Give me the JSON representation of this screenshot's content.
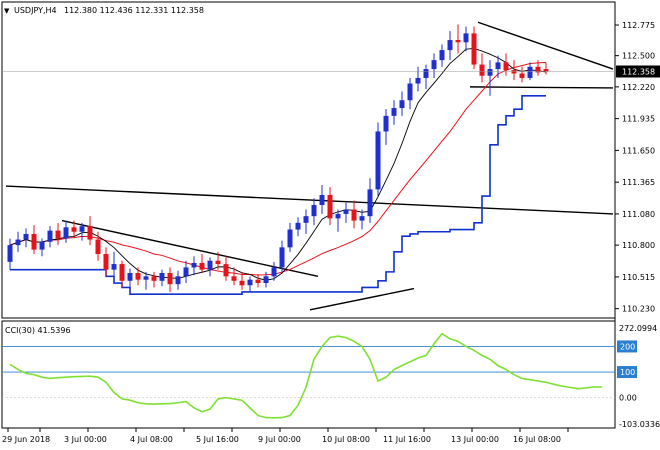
{
  "window": {
    "symbol_label": "USDJPY,H4",
    "ohlc_text": "112.380 112.436 112.331 112.358",
    "arrow_glyph": "▼"
  },
  "price_axis": {
    "ticks": [
      "112.775",
      "112.500",
      "112.220",
      "111.935",
      "111.650",
      "111.365",
      "111.080",
      "110.800",
      "110.515",
      "110.230"
    ],
    "current_price_label": "112.358"
  },
  "cci_panel": {
    "title": "CCI(30) 41.5396",
    "ticks": [
      "272.0994",
      "200",
      "100",
      "0.00",
      "-103.0336"
    ]
  },
  "time_axis": {
    "labels": [
      "29 Jun 2018",
      "3 Jul 00:00",
      "4 Jul 08:00",
      "5 Jul 16:00",
      "9 Jul 00:00",
      "10 Jul 08:00",
      "11 Jul 16:00",
      "13 Jul 00:00",
      "16 Jul 08:00"
    ]
  },
  "colors": {
    "bull": "#1f2fd0",
    "bear": "#e8121b",
    "fast_ma": "#000000",
    "slow_ma": "#e8121b",
    "lower_band": "#1030d0",
    "cci_line": "#7fe032",
    "cci_level": "#2a7fd0",
    "grid_border": "#000000"
  },
  "chart_data": {
    "type": "candlestick",
    "symbol": "USDJPY",
    "timeframe": "H4",
    "y_range": [
      110.2,
      112.82
    ],
    "candles": [
      [
        110.65,
        110.86,
        110.58,
        110.8
      ],
      [
        110.8,
        110.92,
        110.74,
        110.85
      ],
      [
        110.85,
        110.95,
        110.78,
        110.9
      ],
      [
        110.9,
        110.98,
        110.72,
        110.76
      ],
      [
        110.76,
        110.86,
        110.7,
        110.83
      ],
      [
        110.83,
        110.97,
        110.78,
        110.93
      ],
      [
        110.93,
        111.0,
        110.8,
        110.86
      ],
      [
        110.86,
        111.02,
        110.82,
        110.96
      ],
      [
        110.96,
        111.02,
        110.88,
        110.92
      ],
      [
        110.92,
        111.0,
        110.84,
        110.97
      ],
      [
        110.97,
        111.06,
        110.8,
        110.85
      ],
      [
        110.85,
        110.92,
        110.66,
        110.72
      ],
      [
        110.72,
        110.78,
        110.52,
        110.58
      ],
      [
        110.58,
        110.74,
        110.46,
        110.63
      ],
      [
        110.63,
        110.66,
        110.42,
        110.48
      ],
      [
        110.48,
        110.59,
        110.36,
        110.55
      ],
      [
        110.55,
        110.6,
        110.44,
        110.49
      ],
      [
        110.49,
        110.56,
        110.4,
        110.52
      ],
      [
        110.52,
        110.56,
        110.42,
        110.48
      ],
      [
        110.48,
        110.58,
        110.43,
        110.55
      ],
      [
        110.55,
        110.6,
        110.38,
        110.45
      ],
      [
        110.45,
        110.57,
        110.4,
        110.52
      ],
      [
        110.52,
        110.66,
        110.46,
        110.6
      ],
      [
        110.6,
        110.7,
        110.53,
        110.64
      ],
      [
        110.64,
        110.72,
        110.55,
        110.58
      ],
      [
        110.58,
        110.69,
        110.52,
        110.66
      ],
      [
        110.66,
        110.74,
        110.58,
        110.63
      ],
      [
        110.63,
        110.7,
        110.48,
        110.52
      ],
      [
        110.52,
        110.6,
        110.44,
        110.48
      ],
      [
        110.48,
        110.56,
        110.4,
        110.44
      ],
      [
        110.44,
        110.52,
        110.38,
        110.49
      ],
      [
        110.49,
        110.54,
        110.42,
        110.46
      ],
      [
        110.46,
        110.56,
        110.42,
        110.52
      ],
      [
        110.52,
        110.65,
        110.48,
        110.6
      ],
      [
        110.6,
        110.84,
        110.56,
        110.78
      ],
      [
        110.78,
        111.0,
        110.74,
        110.94
      ],
      [
        110.94,
        111.05,
        110.88,
        111.0
      ],
      [
        111.0,
        111.12,
        110.9,
        111.06
      ],
      [
        111.06,
        111.22,
        110.98,
        111.16
      ],
      [
        111.16,
        111.34,
        111.08,
        111.25
      ],
      [
        111.25,
        111.32,
        110.98,
        111.04
      ],
      [
        111.04,
        111.12,
        110.92,
        111.08
      ],
      [
        111.08,
        111.18,
        111.0,
        111.12
      ],
      [
        111.12,
        111.2,
        110.95,
        111.02
      ],
      [
        111.02,
        111.12,
        110.94,
        111.06
      ],
      [
        111.06,
        111.4,
        111.0,
        111.3
      ],
      [
        111.3,
        111.9,
        111.24,
        111.82
      ],
      [
        111.82,
        112.02,
        111.7,
        111.96
      ],
      [
        111.96,
        112.1,
        111.88,
        112.03
      ],
      [
        112.03,
        112.18,
        111.96,
        112.1
      ],
      [
        112.1,
        112.3,
        112.02,
        112.25
      ],
      [
        112.25,
        112.4,
        112.18,
        112.3
      ],
      [
        112.3,
        112.42,
        112.2,
        112.38
      ],
      [
        112.38,
        112.52,
        112.3,
        112.46
      ],
      [
        112.46,
        112.6,
        112.4,
        112.55
      ],
      [
        112.55,
        112.72,
        112.46,
        112.64
      ],
      [
        112.64,
        112.78,
        112.52,
        112.62
      ],
      [
        112.62,
        112.76,
        112.54,
        112.7
      ],
      [
        112.7,
        112.76,
        112.38,
        112.42
      ],
      [
        112.42,
        112.52,
        112.26,
        112.32
      ],
      [
        112.32,
        112.46,
        112.14,
        112.38
      ],
      [
        112.38,
        112.5,
        112.3,
        112.44
      ],
      [
        112.44,
        112.52,
        112.32,
        112.37
      ],
      [
        112.37,
        112.46,
        112.28,
        112.34
      ],
      [
        112.34,
        112.4,
        112.26,
        112.3
      ],
      [
        112.3,
        112.44,
        112.28,
        112.4
      ],
      [
        112.4,
        112.46,
        112.32,
        112.35
      ],
      [
        112.38,
        112.436,
        112.331,
        112.358
      ]
    ],
    "trendlines_price": [
      {
        "name": "upper-triangle-line",
        "from": [
          59,
          112.8
        ],
        "to": [
          77,
          112.38
        ]
      },
      {
        "name": "lower-triangle-line",
        "from": [
          58,
          112.22
        ],
        "to": [
          79,
          112.21
        ]
      },
      {
        "name": "long-horizontal-line",
        "from": [
          0,
          111.33
        ],
        "to": [
          79,
          111.08
        ]
      },
      {
        "name": "early-downtrend-line",
        "from": [
          7,
          111.02
        ],
        "to": [
          39,
          110.52
        ]
      },
      {
        "name": "bottom-uptrend-line",
        "from": [
          38,
          110.22
        ],
        "to": [
          51,
          110.41
        ]
      }
    ],
    "cci": {
      "y_range": [
        -103.0336,
        272.0994
      ],
      "levels": [
        200,
        100
      ],
      "values": [
        130,
        110,
        95,
        90,
        80,
        75,
        78,
        80,
        82,
        83,
        84,
        80,
        60,
        20,
        -5,
        -10,
        -20,
        -24,
        -25,
        -24,
        -23,
        -20,
        -15,
        -40,
        -55,
        -45,
        -5,
        0,
        -5,
        -10,
        -40,
        -70,
        -78,
        -79,
        -78,
        -70,
        -30,
        40,
        150,
        200,
        235,
        240,
        235,
        220,
        200,
        150,
        65,
        80,
        110,
        125,
        140,
        155,
        165,
        210,
        250,
        230,
        220,
        200,
        185,
        165,
        150,
        125,
        110,
        90,
        75,
        70,
        65,
        60,
        52,
        45,
        40,
        35,
        38,
        42,
        41.5
      ]
    }
  }
}
